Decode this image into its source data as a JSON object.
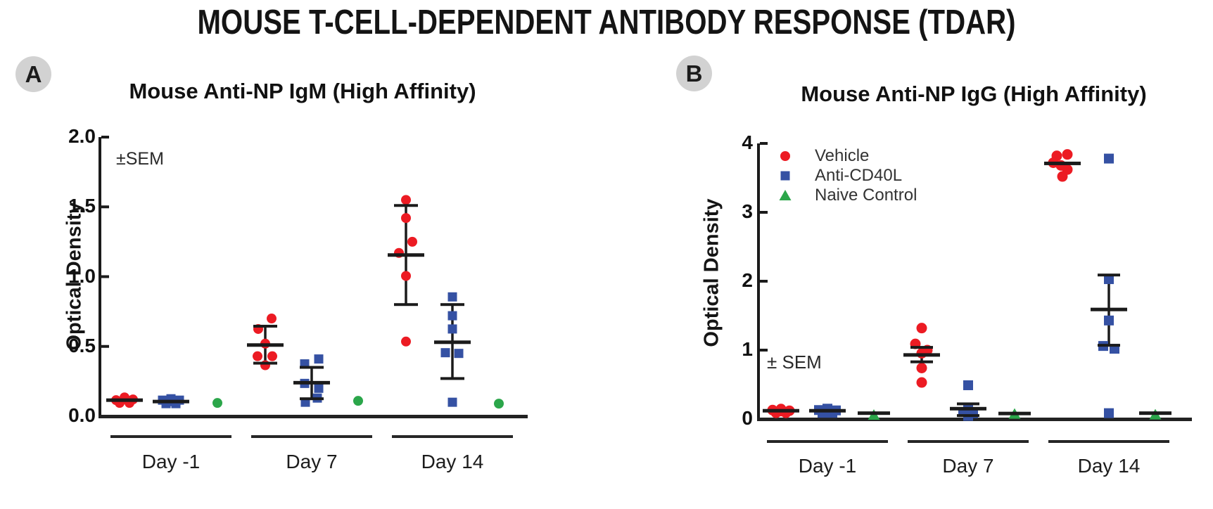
{
  "figure_title": "MOUSE T-CELL-DEPENDENT ANTIBODY RESPONSE (TDAR)",
  "colors": {
    "vehicle": "#EC1B23",
    "anti_cd40l": "#3551A3",
    "naive_control": "#2BA64A",
    "axis": "#1b1b1b",
    "badge_bg": "#d2d2d2"
  },
  "chart_data": [
    {
      "type": "scatter",
      "panel_label": "A",
      "title": "Mouse Anti-NP IgM (High Affinity)",
      "annotation": "±SEM",
      "ylabel": "Optical Density",
      "ylim": [
        0,
        2
      ],
      "yticks": [
        0,
        0.5,
        1,
        1.5,
        2
      ],
      "ytick_labels": [
        "0.0",
        "0.5",
        "1.0",
        "1.5",
        "2.0"
      ],
      "categories": [
        "Day -1",
        "Day 7",
        "Day 14"
      ],
      "grid": false,
      "legend": null,
      "series": [
        {
          "name": "Vehicle",
          "marker": "circle",
          "color": "#EC1B23",
          "groups": [
            {
              "points": [
                [
                  -12,
                  0.115
                ],
                [
                  0,
                  0.135
                ],
                [
                  12,
                  0.12
                ],
                [
                  -7,
                  0.095
                ],
                [
                  7,
                  0.095
                ],
                [
                  2,
                  0.12
                ]
              ],
              "mean": 0.115,
              "sem": null
            },
            {
              "points": [
                [
                  9,
                  0.7
                ],
                [
                  -10,
                  0.625
                ],
                [
                  0,
                  0.52
                ],
                [
                  -11,
                  0.43
                ],
                [
                  10,
                  0.43
                ],
                [
                  0,
                  0.365
                ]
              ],
              "mean": 0.51,
              "sem": [
                0.38,
                0.645
              ]
            },
            {
              "points": [
                [
                  0,
                  1.55
                ],
                [
                  0,
                  1.42
                ],
                [
                  9,
                  1.25
                ],
                [
                  -10,
                  1.17
                ],
                [
                  0,
                  1.005
                ],
                [
                  0,
                  0.535
                ]
              ],
              "mean": 1.155,
              "sem": [
                0.8,
                1.51
              ]
            }
          ]
        },
        {
          "name": "Anti-CD40L",
          "marker": "square",
          "color": "#3551A3",
          "groups": [
            {
              "points": [
                [
                  -12,
                  0.115
                ],
                [
                  0,
                  0.125
                ],
                [
                  12,
                  0.115
                ],
                [
                  -7,
                  0.09
                ],
                [
                  7,
                  0.09
                ],
                [
                  0,
                  0.105
                ]
              ],
              "mean": 0.105,
              "sem": null
            },
            {
              "points": [
                [
                  10,
                  0.41
                ],
                [
                  -10,
                  0.375
                ],
                [
                  -10,
                  0.235
                ],
                [
                  10,
                  0.2
                ],
                [
                  8,
                  0.13
                ],
                [
                  -9,
                  0.1
                ]
              ],
              "mean": 0.24,
              "sem": [
                0.125,
                0.35
              ]
            },
            {
              "points": [
                [
                  0,
                  0.855
                ],
                [
                  0,
                  0.72
                ],
                [
                  0,
                  0.625
                ],
                [
                  -10,
                  0.455
                ],
                [
                  9,
                  0.45
                ],
                [
                  0,
                  0.1
                ]
              ],
              "mean": 0.53,
              "sem": [
                0.27,
                0.8
              ]
            }
          ]
        },
        {
          "name": "Naive Control",
          "marker": "circle",
          "color": "#2BA64A",
          "groups": [
            {
              "points": [
                [
                  0,
                  0.095
                ]
              ],
              "mean": null,
              "sem": null
            },
            {
              "points": [
                [
                  0,
                  0.11
                ]
              ],
              "mean": null,
              "sem": null
            },
            {
              "points": [
                [
                  0,
                  0.09
                ]
              ],
              "mean": null,
              "sem": null
            }
          ]
        }
      ]
    },
    {
      "type": "scatter",
      "panel_label": "B",
      "title": "Mouse Anti-NP IgG (High Affinity)",
      "annotation": "± SEM",
      "ylabel": "Optical Density",
      "ylim": [
        0,
        4
      ],
      "yticks": [
        0,
        1,
        2,
        3,
        4
      ],
      "ytick_labels": [
        "0",
        "1",
        "2",
        "3",
        "4"
      ],
      "categories": [
        "Day -1",
        "Day 7",
        "Day 14"
      ],
      "grid": false,
      "legend": [
        {
          "label": "Vehicle",
          "marker": "circle",
          "color": "#EC1B23"
        },
        {
          "label": "Anti-CD40L",
          "marker": "square",
          "color": "#3551A3"
        },
        {
          "label": "Naive Control",
          "marker": "triangle",
          "color": "#2BA64A"
        }
      ],
      "series": [
        {
          "name": "Vehicle",
          "marker": "circle",
          "color": "#EC1B23",
          "groups": [
            {
              "points": [
                [
                  -12,
                  0.13
                ],
                [
                  0,
                  0.145
                ],
                [
                  12,
                  0.12
                ],
                [
                  -7,
                  0.09
                ],
                [
                  7,
                  0.09
                ],
                [
                  0,
                  0.115
                ]
              ],
              "mean": 0.12,
              "sem": null
            },
            {
              "points": [
                [
                  0,
                  1.32
                ],
                [
                  -9,
                  1.09
                ],
                [
                  8,
                  1.0
                ],
                [
                  0,
                  0.955
                ],
                [
                  0,
                  0.74
                ],
                [
                  0,
                  0.53
                ]
              ],
              "mean": 0.93,
              "sem": [
                0.83,
                1.04
              ]
            },
            {
              "points": [
                [
                  -8,
                  3.82
                ],
                [
                  7,
                  3.84
                ],
                [
                  -13,
                  3.72
                ],
                [
                  -2,
                  3.68
                ],
                [
                  7,
                  3.62
                ],
                [
                  0,
                  3.52
                ]
              ],
              "mean": 3.71,
              "sem": null
            }
          ]
        },
        {
          "name": "Anti-CD40L",
          "marker": "square",
          "color": "#3551A3",
          "groups": [
            {
              "points": [
                [
                  -12,
                  0.13
                ],
                [
                  0,
                  0.15
                ],
                [
                  12,
                  0.125
                ],
                [
                  -7,
                  0.09
                ],
                [
                  7,
                  0.09
                ],
                [
                  0,
                  0.11
                ]
              ],
              "mean": 0.12,
              "sem": null
            },
            {
              "points": [
                [
                  0,
                  0.49
                ],
                [
                  0,
                  0.14
                ],
                [
                  -7,
                  0.1
                ],
                [
                  7,
                  0.085
                ],
                [
                  0,
                  0.045
                ]
              ],
              "mean": 0.15,
              "sem": [
                0.05,
                0.22
              ]
            },
            {
              "points": [
                [
                  0,
                  3.78
                ],
                [
                  0,
                  2.03
                ],
                [
                  0,
                  1.43
                ],
                [
                  -8,
                  1.06
                ],
                [
                  8,
                  1.02
                ],
                [
                  0,
                  0.085
                ]
              ],
              "mean": 1.59,
              "sem": [
                1.07,
                2.09
              ]
            }
          ]
        },
        {
          "name": "Naive Control",
          "marker": "triangle",
          "color": "#2BA64A",
          "groups": [
            {
              "points": [
                [
                  0,
                  0.06
                ]
              ],
              "mean": 0.085,
              "sem": null
            },
            {
              "points": [
                [
                  0,
                  0.075
                ]
              ],
              "mean": 0.08,
              "sem": null
            },
            {
              "points": [
                [
                  0,
                  0.065
                ]
              ],
              "mean": 0.085,
              "sem": null
            }
          ]
        }
      ]
    }
  ]
}
